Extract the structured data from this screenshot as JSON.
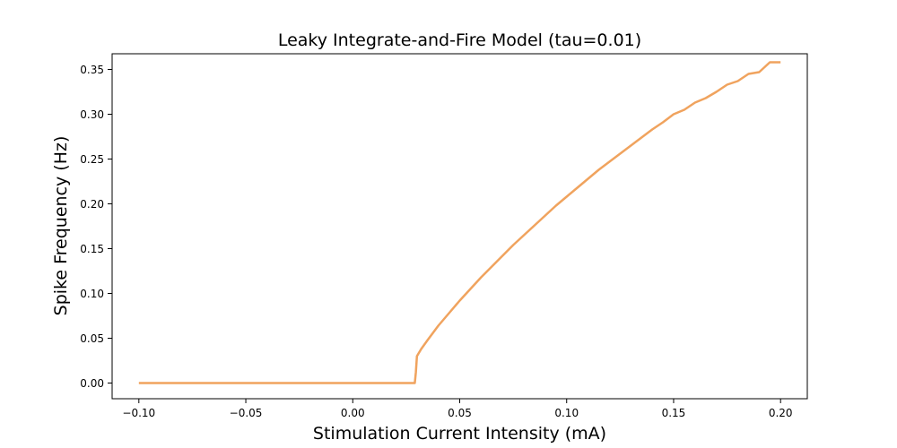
{
  "chart_data": {
    "type": "line",
    "title": "Leaky Integrate-and-Fire Model (tau=0.01)",
    "xlabel": "Stimulation Current Intensity (mA)",
    "ylabel": "Spike Frequency (Hz)",
    "xlim": [
      -0.1125,
      0.2125
    ],
    "ylim": [
      -0.0175,
      0.3675
    ],
    "grid": false,
    "legend": "none",
    "xticks": [
      -0.1,
      -0.05,
      0.0,
      0.05,
      0.1,
      0.15,
      0.2
    ],
    "xtick_labels": [
      "−0.10",
      "−0.05",
      "0.00",
      "0.05",
      "0.10",
      "0.15",
      "0.20"
    ],
    "yticks": [
      0.0,
      0.05,
      0.1,
      0.15,
      0.2,
      0.25,
      0.3,
      0.35
    ],
    "ytick_labels": [
      "0.00",
      "0.05",
      "0.10",
      "0.15",
      "0.20",
      "0.25",
      "0.30",
      "0.35"
    ],
    "series": [
      {
        "color": "#f0a35e",
        "x": [
          -0.1,
          0.0,
          0.029,
          0.0295,
          0.03,
          0.032,
          0.035,
          0.04,
          0.045,
          0.05,
          0.055,
          0.06,
          0.065,
          0.07,
          0.075,
          0.08,
          0.085,
          0.09,
          0.095,
          0.1,
          0.105,
          0.11,
          0.115,
          0.12,
          0.125,
          0.13,
          0.135,
          0.14,
          0.145,
          0.15,
          0.155,
          0.16,
          0.165,
          0.17,
          0.175,
          0.18,
          0.185,
          0.19,
          0.195,
          0.2
        ],
        "y": [
          0.0,
          0.0,
          0.0,
          0.012,
          0.03,
          0.038,
          0.048,
          0.064,
          0.078,
          0.092,
          0.105,
          0.118,
          0.13,
          0.142,
          0.154,
          0.165,
          0.176,
          0.187,
          0.198,
          0.208,
          0.218,
          0.228,
          0.238,
          0.247,
          0.256,
          0.265,
          0.274,
          0.283,
          0.291,
          0.3,
          0.305,
          0.313,
          0.318,
          0.325,
          0.333,
          0.337,
          0.345,
          0.347,
          0.358,
          0.358
        ]
      }
    ]
  }
}
